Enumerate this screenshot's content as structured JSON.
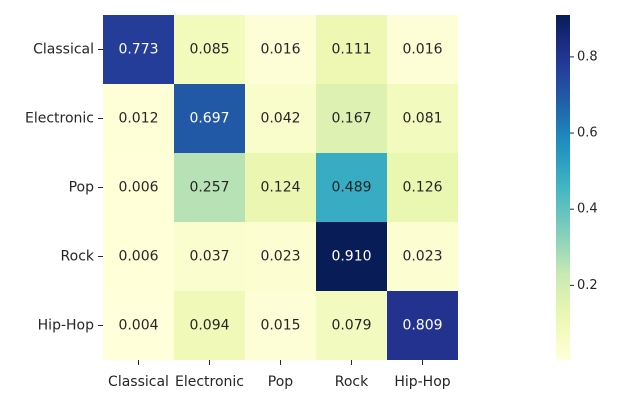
{
  "chart_data": {
    "type": "heatmap",
    "title": "",
    "xlabel": "",
    "ylabel": "",
    "x_categories": [
      "Classical",
      "Electronic",
      "Pop",
      "Rock",
      "Hip-Hop"
    ],
    "y_categories": [
      "Classical",
      "Electronic",
      "Pop",
      "Rock",
      "Hip-Hop"
    ],
    "values": [
      [
        0.773,
        0.085,
        0.016,
        0.111,
        0.016
      ],
      [
        0.012,
        0.697,
        0.042,
        0.167,
        0.081
      ],
      [
        0.006,
        0.257,
        0.124,
        0.489,
        0.126
      ],
      [
        0.006,
        0.037,
        0.023,
        0.91,
        0.023
      ],
      [
        0.004,
        0.094,
        0.015,
        0.079,
        0.809
      ]
    ],
    "value_labels": [
      [
        "0.773",
        "0.085",
        "0.016",
        "0.111",
        "0.016"
      ],
      [
        "0.012",
        "0.697",
        "0.042",
        "0.167",
        "0.081"
      ],
      [
        "0.006",
        "0.257",
        "0.124",
        "0.489",
        "0.126"
      ],
      [
        "0.006",
        "0.037",
        "0.023",
        "0.910",
        "0.023"
      ],
      [
        "0.004",
        "0.094",
        "0.015",
        "0.079",
        "0.809"
      ]
    ],
    "colormap": "YlGnBu",
    "colorbar": {
      "range": [
        0.004,
        0.91
      ],
      "ticks": [
        0.2,
        0.4,
        0.6,
        0.8
      ],
      "tick_labels": [
        "0.2",
        "0.4",
        "0.6",
        "0.8"
      ]
    },
    "grid": false
  }
}
